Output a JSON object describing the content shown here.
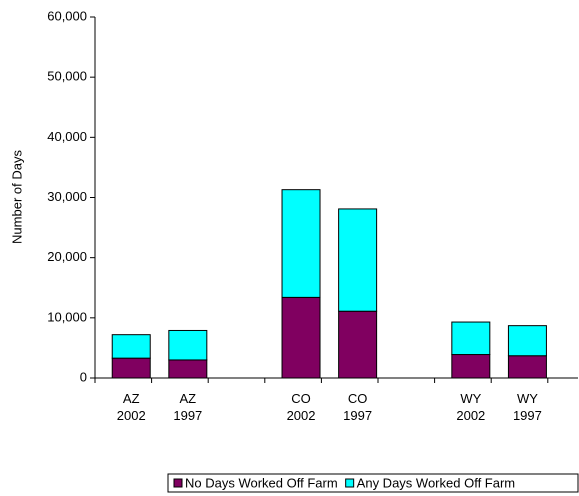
{
  "chart_data": {
    "type": "bar",
    "stacked": true,
    "ylabel": "Number of Days",
    "categories": [
      [
        "AZ",
        "2002"
      ],
      [
        "AZ",
        "1997"
      ],
      null,
      [
        "CO",
        "2002"
      ],
      [
        "CO",
        "1997"
      ],
      null,
      [
        "WY",
        "2002"
      ],
      [
        "WY",
        "1997"
      ]
    ],
    "series": [
      {
        "name": "No Days Worked Off Farm",
        "color": "#800060",
        "values": [
          3300,
          3000,
          null,
          13400,
          11100,
          null,
          3900,
          3700
        ]
      },
      {
        "name": "Any Days Worked Off Farm",
        "color": "#00ffff",
        "values": [
          3900,
          4900,
          null,
          17900,
          17000,
          null,
          5400,
          5000
        ]
      }
    ],
    "ylim": [
      0,
      60000
    ],
    "yticks": [
      {
        "value": 0,
        "label": "0"
      },
      {
        "value": 10000,
        "label": "10,000"
      },
      {
        "value": 20000,
        "label": "20,000"
      },
      {
        "value": 30000,
        "label": "30,000"
      },
      {
        "value": 40000,
        "label": "40,000"
      },
      {
        "value": 50000,
        "label": "50,000"
      },
      {
        "value": 60000,
        "label": "60,000"
      }
    ],
    "grid": false,
    "legend": "bottom-right"
  }
}
